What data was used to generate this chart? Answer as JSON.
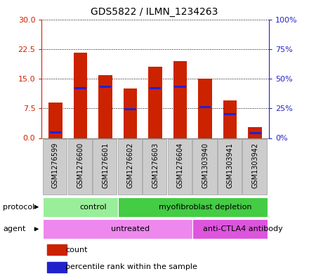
{
  "title": "GDS5822 / ILMN_1234263",
  "samples": [
    "GSM1276599",
    "GSM1276600",
    "GSM1276601",
    "GSM1276602",
    "GSM1276603",
    "GSM1276604",
    "GSM1303940",
    "GSM1303941",
    "GSM1303942"
  ],
  "counts": [
    9.0,
    21.5,
    15.8,
    12.5,
    18.0,
    19.5,
    15.0,
    9.5,
    2.8
  ],
  "percentile_ranks": [
    5.0,
    42.0,
    43.0,
    24.0,
    42.0,
    43.0,
    26.0,
    20.0,
    4.0
  ],
  "left_yticks": [
    0,
    7.5,
    15,
    22.5,
    30
  ],
  "right_yticks": [
    0,
    25,
    50,
    75,
    100
  ],
  "left_ylim": [
    0,
    30
  ],
  "right_ylim": [
    0,
    100
  ],
  "bar_color": "#cc2200",
  "percentile_color": "#2222cc",
  "protocol_groups": [
    {
      "label": "control",
      "start": 0,
      "end": 3,
      "color": "#99ee99"
    },
    {
      "label": "myofibroblast depletion",
      "start": 3,
      "end": 9,
      "color": "#44cc44"
    }
  ],
  "agent_groups": [
    {
      "label": "untreated",
      "start": 0,
      "end": 6,
      "color": "#ee88ee"
    },
    {
      "label": "anti-CTLA4 antibody",
      "start": 6,
      "end": 9,
      "color": "#dd55dd"
    }
  ],
  "grid_color": "black",
  "left_axis_color": "#cc2200",
  "right_axis_color": "#2222cc",
  "sample_box_color": "#cccccc",
  "sample_box_edge": "#999999"
}
